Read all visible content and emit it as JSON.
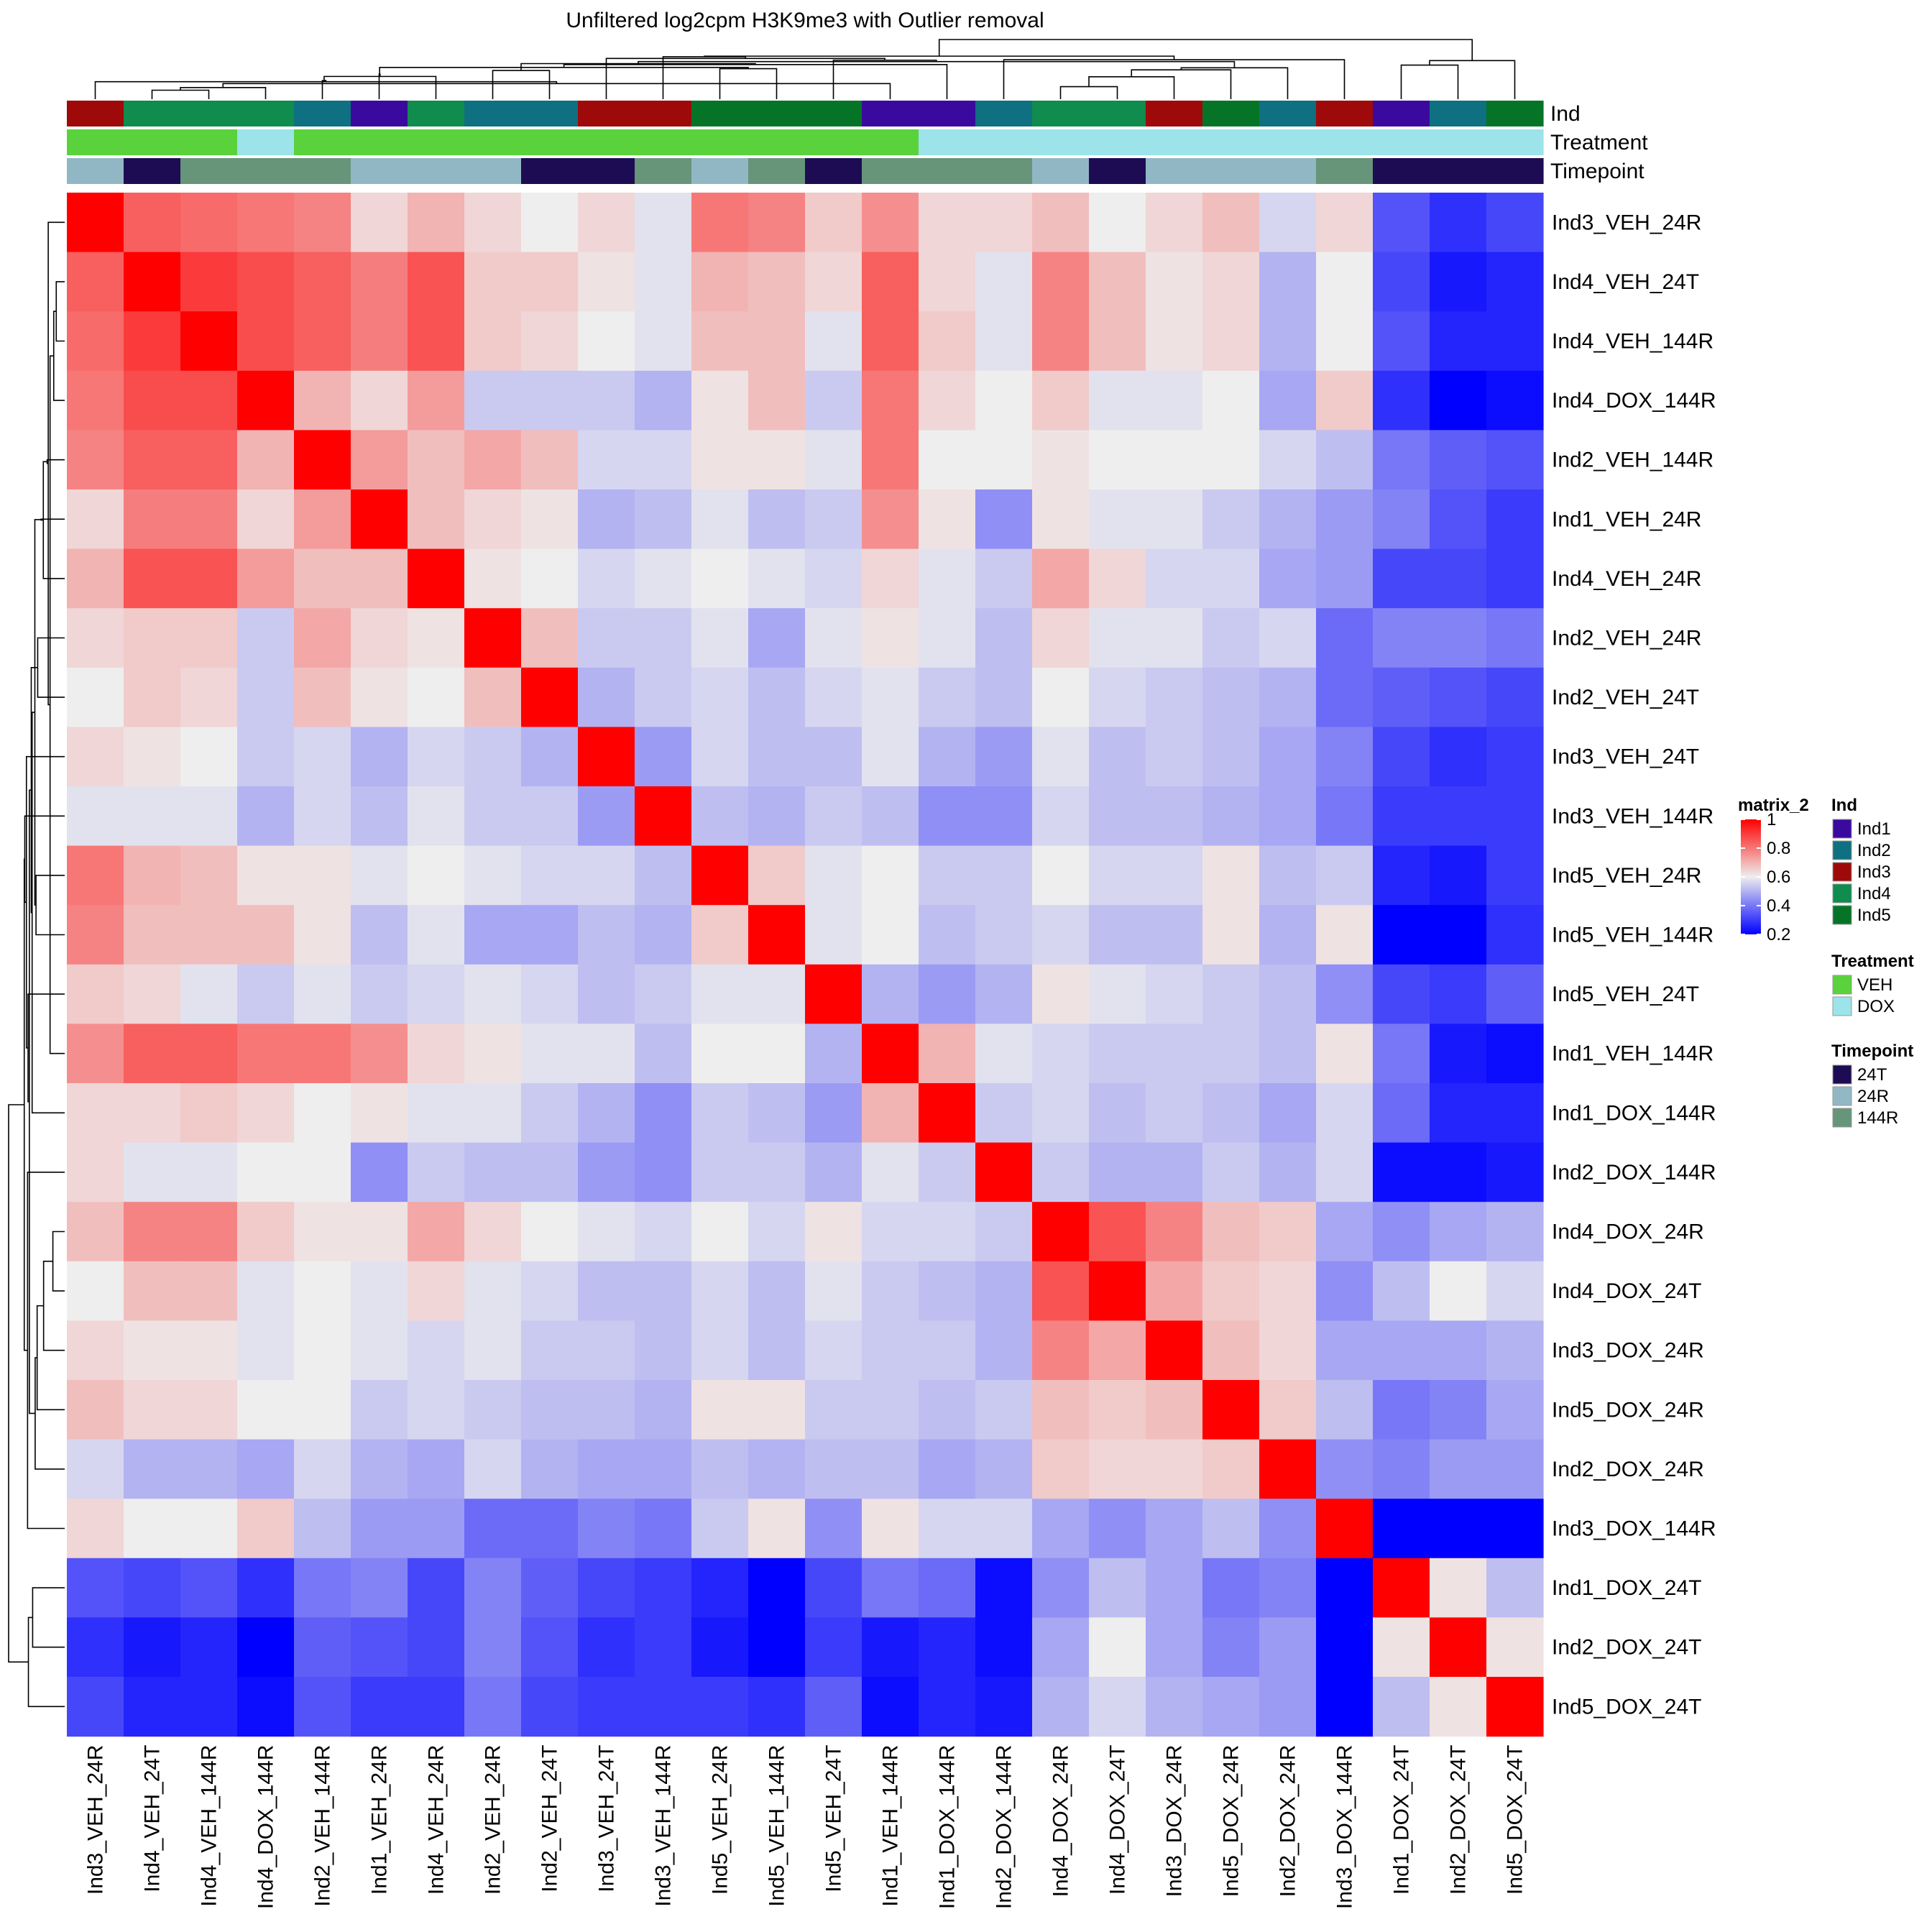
{
  "chart_data": {
    "type": "heatmap",
    "title": "Unfiltered log2cpm H3K9me3 with Outlier removal",
    "legend_title": "matrix_2",
    "color_scale": {
      "ticks": [
        "1",
        "0.8",
        "0.6",
        "0.4",
        "0.2"
      ],
      "range": [
        0.2,
        1
      ],
      "colors": {
        "low": "#0000FF",
        "mid": "#EEEEEE",
        "high": "#FF0000"
      }
    },
    "samples": [
      "Ind3_VEH_24R",
      "Ind4_VEH_24T",
      "Ind4_VEH_144R",
      "Ind4_DOX_144R",
      "Ind2_VEH_144R",
      "Ind1_VEH_24R",
      "Ind4_VEH_24R",
      "Ind2_VEH_24R",
      "Ind2_VEH_24T",
      "Ind3_VEH_24T",
      "Ind3_VEH_144R",
      "Ind5_VEH_24R",
      "Ind5_VEH_144R",
      "Ind5_VEH_24T",
      "Ind1_VEH_144R",
      "Ind1_DOX_144R",
      "Ind2_DOX_144R",
      "Ind4_DOX_24R",
      "Ind4_DOX_24T",
      "Ind3_DOX_24R",
      "Ind5_DOX_24R",
      "Ind2_DOX_24R",
      "Ind3_DOX_144R",
      "Ind1_DOX_24T",
      "Ind2_DOX_24T",
      "Ind5_DOX_24T"
    ],
    "annotations": {
      "labels": [
        "Ind",
        "Treatment",
        "Timepoint"
      ],
      "Ind": [
        "Ind3",
        "Ind4",
        "Ind4",
        "Ind4",
        "Ind2",
        "Ind1",
        "Ind4",
        "Ind2",
        "Ind2",
        "Ind3",
        "Ind3",
        "Ind5",
        "Ind5",
        "Ind5",
        "Ind1",
        "Ind1",
        "Ind2",
        "Ind4",
        "Ind4",
        "Ind3",
        "Ind5",
        "Ind2",
        "Ind3",
        "Ind1",
        "Ind2",
        "Ind5"
      ],
      "Treatment": [
        "VEH",
        "VEH",
        "VEH",
        "DOX",
        "VEH",
        "VEH",
        "VEH",
        "VEH",
        "VEH",
        "VEH",
        "VEH",
        "VEH",
        "VEH",
        "VEH",
        "VEH",
        "DOX",
        "DOX",
        "DOX",
        "DOX",
        "DOX",
        "DOX",
        "DOX",
        "DOX",
        "DOX",
        "DOX",
        "DOX"
      ],
      "Timepoint": [
        "24R",
        "24T",
        "144R",
        "144R",
        "144R",
        "24R",
        "24R",
        "24R",
        "24T",
        "24T",
        "144R",
        "24R",
        "144R",
        "24T",
        "144R",
        "144R",
        "144R",
        "24R",
        "24T",
        "24R",
        "24R",
        "24R",
        "144R",
        "24T",
        "24T",
        "24T"
      ]
    },
    "legends": [
      {
        "title": "Ind",
        "entries": [
          {
            "label": "Ind1",
            "color": "#3A0A9E"
          },
          {
            "label": "Ind2",
            "color": "#0E7080"
          },
          {
            "label": "Ind3",
            "color": "#9E0A0A"
          },
          {
            "label": "Ind4",
            "color": "#0F8C4E"
          },
          {
            "label": "Ind5",
            "color": "#067427"
          }
        ]
      },
      {
        "title": "Treatment",
        "entries": [
          {
            "label": "VEH",
            "color": "#5AD23C"
          },
          {
            "label": "DOX",
            "color": "#9CE3EA"
          }
        ]
      },
      {
        "title": "Timepoint",
        "entries": [
          {
            "label": "24T",
            "color": "#1D0C54"
          },
          {
            "label": "24R",
            "color": "#92B7C4"
          },
          {
            "label": "144R",
            "color": "#66957A"
          }
        ]
      }
    ],
    "matrix": [
      [
        1.0,
        0.84,
        0.82,
        0.8,
        0.78,
        0.64,
        0.7,
        0.64,
        0.6,
        0.64,
        0.58,
        0.8,
        0.78,
        0.66,
        0.76,
        0.64,
        0.64,
        0.68,
        0.6,
        0.64,
        0.68,
        0.56,
        0.64,
        0.34,
        0.28,
        0.32
      ],
      [
        0.84,
        1.0,
        0.9,
        0.87,
        0.84,
        0.79,
        0.86,
        0.66,
        0.66,
        0.62,
        0.58,
        0.7,
        0.68,
        0.64,
        0.84,
        0.64,
        0.58,
        0.78,
        0.68,
        0.62,
        0.64,
        0.5,
        0.6,
        0.32,
        0.24,
        0.26
      ],
      [
        0.82,
        0.9,
        1.0,
        0.87,
        0.84,
        0.79,
        0.86,
        0.66,
        0.64,
        0.6,
        0.58,
        0.68,
        0.68,
        0.58,
        0.84,
        0.66,
        0.58,
        0.78,
        0.68,
        0.62,
        0.64,
        0.5,
        0.6,
        0.34,
        0.26,
        0.26
      ],
      [
        0.8,
        0.87,
        0.87,
        1.0,
        0.7,
        0.64,
        0.74,
        0.54,
        0.54,
        0.54,
        0.5,
        0.62,
        0.68,
        0.54,
        0.8,
        0.64,
        0.6,
        0.66,
        0.58,
        0.58,
        0.6,
        0.48,
        0.66,
        0.28,
        0.2,
        0.22
      ],
      [
        0.78,
        0.84,
        0.84,
        0.7,
        1.0,
        0.74,
        0.68,
        0.72,
        0.68,
        0.56,
        0.56,
        0.62,
        0.62,
        0.58,
        0.8,
        0.6,
        0.6,
        0.62,
        0.6,
        0.6,
        0.6,
        0.56,
        0.52,
        0.4,
        0.36,
        0.34
      ],
      [
        0.64,
        0.79,
        0.79,
        0.64,
        0.74,
        1.0,
        0.68,
        0.64,
        0.62,
        0.5,
        0.52,
        0.58,
        0.52,
        0.54,
        0.76,
        0.62,
        0.44,
        0.62,
        0.58,
        0.58,
        0.54,
        0.5,
        0.46,
        0.42,
        0.34,
        0.3
      ],
      [
        0.7,
        0.86,
        0.86,
        0.74,
        0.68,
        0.68,
        1.0,
        0.62,
        0.6,
        0.56,
        0.58,
        0.6,
        0.58,
        0.56,
        0.64,
        0.58,
        0.54,
        0.72,
        0.64,
        0.56,
        0.56,
        0.48,
        0.46,
        0.32,
        0.32,
        0.3
      ],
      [
        0.64,
        0.66,
        0.66,
        0.54,
        0.72,
        0.64,
        0.62,
        1.0,
        0.68,
        0.54,
        0.54,
        0.58,
        0.48,
        0.58,
        0.62,
        0.58,
        0.52,
        0.64,
        0.58,
        0.58,
        0.54,
        0.56,
        0.38,
        0.42,
        0.42,
        0.4
      ],
      [
        0.6,
        0.66,
        0.64,
        0.54,
        0.68,
        0.62,
        0.6,
        0.68,
        1.0,
        0.5,
        0.54,
        0.56,
        0.52,
        0.56,
        0.58,
        0.54,
        0.52,
        0.6,
        0.56,
        0.54,
        0.52,
        0.5,
        0.38,
        0.36,
        0.34,
        0.32
      ],
      [
        0.64,
        0.62,
        0.6,
        0.54,
        0.56,
        0.5,
        0.56,
        0.54,
        0.5,
        1.0,
        0.46,
        0.56,
        0.52,
        0.52,
        0.58,
        0.5,
        0.46,
        0.58,
        0.52,
        0.54,
        0.52,
        0.48,
        0.42,
        0.32,
        0.28,
        0.3
      ],
      [
        0.58,
        0.58,
        0.58,
        0.5,
        0.56,
        0.52,
        0.58,
        0.54,
        0.54,
        0.46,
        1.0,
        0.52,
        0.5,
        0.54,
        0.52,
        0.44,
        0.44,
        0.56,
        0.52,
        0.52,
        0.5,
        0.48,
        0.4,
        0.3,
        0.3,
        0.3
      ],
      [
        0.8,
        0.7,
        0.68,
        0.62,
        0.62,
        0.58,
        0.6,
        0.58,
        0.56,
        0.56,
        0.52,
        1.0,
        0.66,
        0.58,
        0.6,
        0.54,
        0.54,
        0.6,
        0.56,
        0.56,
        0.62,
        0.52,
        0.54,
        0.26,
        0.24,
        0.3
      ],
      [
        0.78,
        0.68,
        0.68,
        0.68,
        0.62,
        0.52,
        0.58,
        0.48,
        0.48,
        0.52,
        0.5,
        0.66,
        1.0,
        0.58,
        0.6,
        0.52,
        0.54,
        0.56,
        0.52,
        0.52,
        0.62,
        0.5,
        0.62,
        0.18,
        0.18,
        0.28
      ],
      [
        0.66,
        0.64,
        0.58,
        0.54,
        0.58,
        0.54,
        0.56,
        0.58,
        0.56,
        0.52,
        0.54,
        0.58,
        0.58,
        1.0,
        0.5,
        0.46,
        0.5,
        0.62,
        0.58,
        0.56,
        0.54,
        0.52,
        0.44,
        0.32,
        0.3,
        0.36
      ],
      [
        0.76,
        0.84,
        0.84,
        0.8,
        0.8,
        0.76,
        0.64,
        0.62,
        0.58,
        0.58,
        0.52,
        0.6,
        0.6,
        0.5,
        1.0,
        0.7,
        0.58,
        0.56,
        0.54,
        0.54,
        0.54,
        0.52,
        0.62,
        0.4,
        0.24,
        0.22
      ],
      [
        0.64,
        0.64,
        0.66,
        0.64,
        0.6,
        0.62,
        0.58,
        0.58,
        0.54,
        0.5,
        0.44,
        0.54,
        0.52,
        0.46,
        0.7,
        1.0,
        0.54,
        0.56,
        0.52,
        0.54,
        0.52,
        0.48,
        0.56,
        0.38,
        0.26,
        0.26
      ],
      [
        0.64,
        0.58,
        0.58,
        0.6,
        0.6,
        0.44,
        0.54,
        0.52,
        0.52,
        0.46,
        0.44,
        0.54,
        0.54,
        0.5,
        0.58,
        0.54,
        1.0,
        0.54,
        0.5,
        0.5,
        0.54,
        0.5,
        0.56,
        0.22,
        0.22,
        0.24
      ],
      [
        0.68,
        0.78,
        0.78,
        0.66,
        0.62,
        0.62,
        0.72,
        0.64,
        0.6,
        0.58,
        0.56,
        0.6,
        0.56,
        0.62,
        0.56,
        0.56,
        0.54,
        1.0,
        0.86,
        0.78,
        0.68,
        0.66,
        0.48,
        0.44,
        0.48,
        0.5
      ],
      [
        0.6,
        0.68,
        0.68,
        0.58,
        0.6,
        0.58,
        0.64,
        0.58,
        0.56,
        0.52,
        0.52,
        0.56,
        0.52,
        0.58,
        0.54,
        0.52,
        0.5,
        0.86,
        1.0,
        0.72,
        0.66,
        0.64,
        0.44,
        0.52,
        0.6,
        0.56
      ],
      [
        0.64,
        0.62,
        0.62,
        0.58,
        0.6,
        0.58,
        0.56,
        0.58,
        0.54,
        0.54,
        0.52,
        0.56,
        0.52,
        0.56,
        0.54,
        0.54,
        0.5,
        0.78,
        0.72,
        1.0,
        0.68,
        0.64,
        0.48,
        0.48,
        0.48,
        0.5
      ],
      [
        0.68,
        0.64,
        0.64,
        0.6,
        0.6,
        0.54,
        0.56,
        0.54,
        0.52,
        0.52,
        0.5,
        0.62,
        0.62,
        0.54,
        0.54,
        0.52,
        0.54,
        0.68,
        0.66,
        0.68,
        1.0,
        0.66,
        0.52,
        0.4,
        0.42,
        0.48
      ],
      [
        0.56,
        0.5,
        0.5,
        0.48,
        0.56,
        0.5,
        0.48,
        0.56,
        0.5,
        0.48,
        0.48,
        0.52,
        0.5,
        0.52,
        0.52,
        0.48,
        0.5,
        0.66,
        0.64,
        0.64,
        0.66,
        1.0,
        0.44,
        0.42,
        0.46,
        0.46
      ],
      [
        0.64,
        0.6,
        0.6,
        0.66,
        0.52,
        0.46,
        0.46,
        0.38,
        0.38,
        0.42,
        0.4,
        0.54,
        0.62,
        0.44,
        0.62,
        0.56,
        0.56,
        0.48,
        0.44,
        0.48,
        0.52,
        0.44,
        1.0,
        0.2,
        0.2,
        0.2
      ],
      [
        0.34,
        0.32,
        0.34,
        0.28,
        0.4,
        0.42,
        0.32,
        0.42,
        0.36,
        0.32,
        0.3,
        0.26,
        0.18,
        0.32,
        0.4,
        0.38,
        0.22,
        0.44,
        0.52,
        0.48,
        0.4,
        0.42,
        0.2,
        1.0,
        0.62,
        0.52
      ],
      [
        0.28,
        0.24,
        0.26,
        0.2,
        0.36,
        0.34,
        0.32,
        0.42,
        0.34,
        0.28,
        0.3,
        0.24,
        0.18,
        0.3,
        0.24,
        0.26,
        0.22,
        0.48,
        0.6,
        0.48,
        0.42,
        0.46,
        0.2,
        0.62,
        1.0,
        0.62
      ],
      [
        0.32,
        0.26,
        0.26,
        0.22,
        0.34,
        0.3,
        0.3,
        0.4,
        0.32,
        0.3,
        0.3,
        0.3,
        0.28,
        0.36,
        0.22,
        0.26,
        0.24,
        0.5,
        0.56,
        0.5,
        0.48,
        0.46,
        0.2,
        0.52,
        0.62,
        1.0
      ]
    ]
  }
}
